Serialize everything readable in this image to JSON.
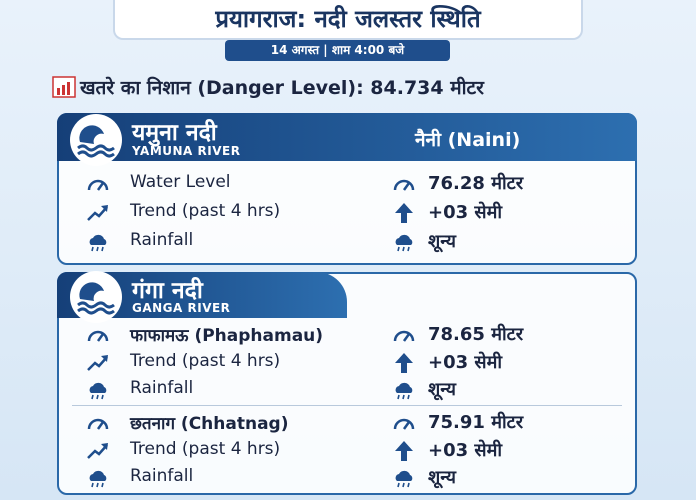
{
  "header": {
    "title": "प्रयागराज: नदी जलस्तर स्थिति",
    "subtitle": "14 अगस्त | शाम 4:00 बजे"
  },
  "danger_level": "खतरे का निशान (Danger Level): 84.734 मीटर",
  "yamuna": {
    "name": "यमुना नदी",
    "name_en": "YAMUNA RIVER",
    "station": "नैनी (Naini)",
    "rows": [
      [
        "Water Level",
        "76.28 मीटर"
      ],
      [
        "Trend (past 4 hrs)",
        "+03 सेमी"
      ],
      [
        "Rainfall",
        "शून्य"
      ]
    ]
  },
  "ganga": {
    "name": "गंगा नदी",
    "name_en": "GANGA RIVER",
    "stations": [
      {
        "rows": [
          [
            "फाफामऊ (Phaphamau)",
            "78.65 मीटर"
          ],
          [
            "Trend (past 4 hrs)",
            "+03 सेमी"
          ],
          [
            "Rainfall",
            "शून्य"
          ]
        ]
      },
      {
        "rows": [
          [
            "छतनाग (Chhatnag)",
            "75.91 मीटर"
          ],
          [
            "Trend (past 4 hrs)",
            "+03 सेमी"
          ],
          [
            "Rainfall",
            "शून्य"
          ]
        ]
      }
    ]
  }
}
